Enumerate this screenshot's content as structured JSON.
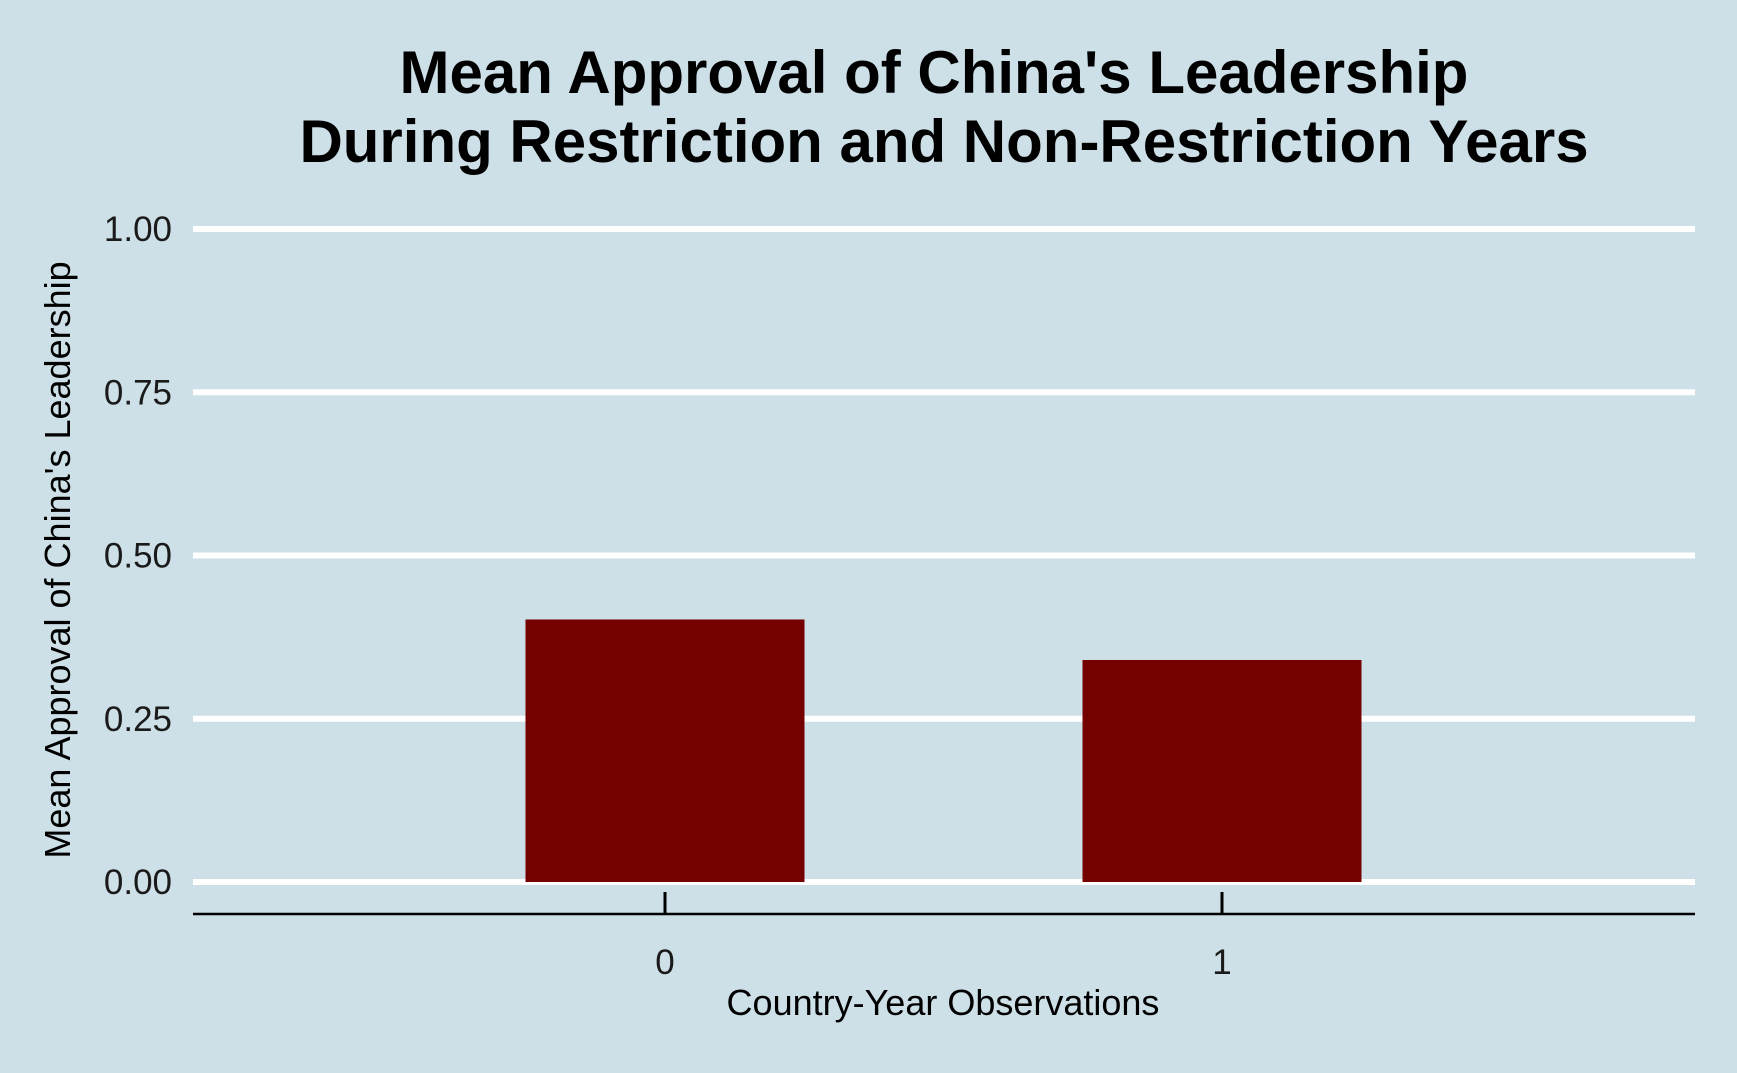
{
  "chart_data": {
    "type": "bar",
    "title": "Mean Approval of China's Leadership",
    "subtitle": "During Restriction and Non-Restriction Years",
    "xlabel": "Country-Year Observations",
    "ylabel": "Mean Approval of China's Leadership",
    "categories": [
      "0",
      "1"
    ],
    "values": [
      0.402,
      0.34
    ],
    "ylim": [
      0,
      1
    ],
    "yticks": [
      "0.00",
      "0.25",
      "0.50",
      "0.75",
      "1.00"
    ],
    "ytick_values": [
      0,
      0.25,
      0.5,
      0.75,
      1.0
    ],
    "grid": "horizontal major",
    "legend": "none",
    "colors": {
      "background": "#cddfe7",
      "bar": "#750000",
      "grid": "#ffffff"
    }
  }
}
